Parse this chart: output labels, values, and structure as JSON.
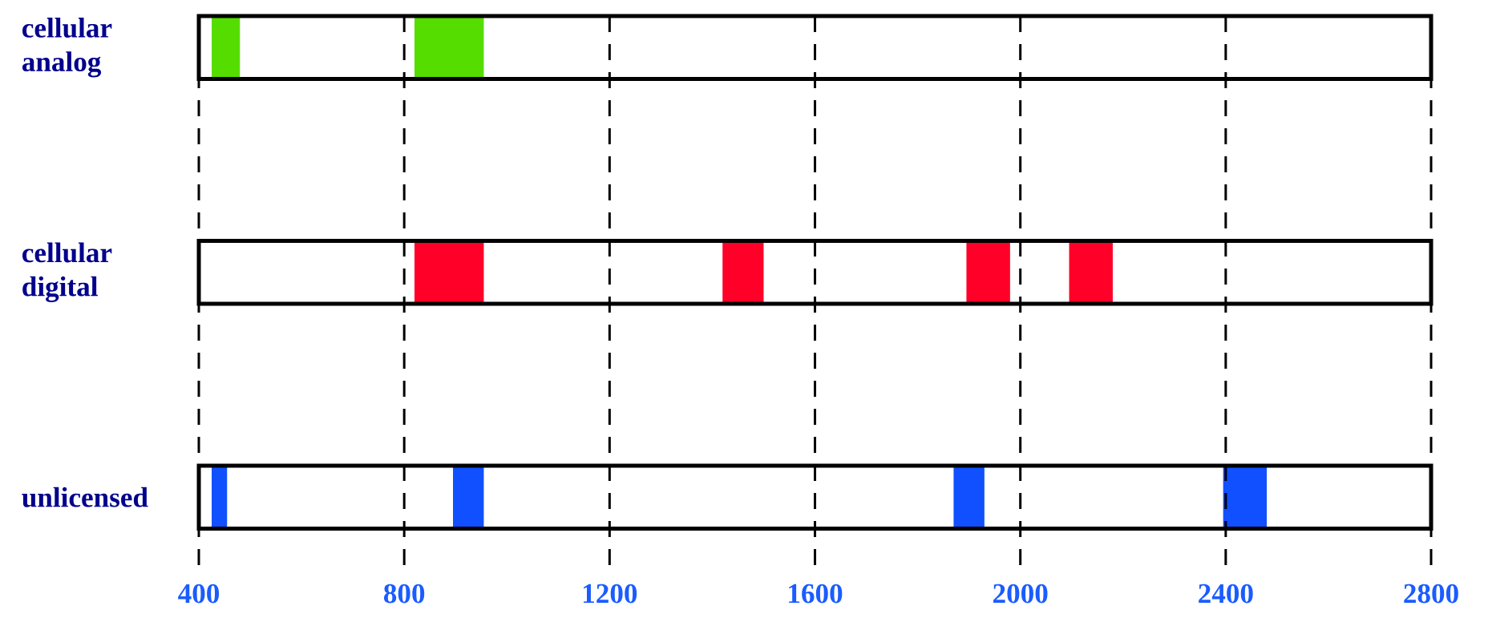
{
  "chart_data": {
    "type": "bar",
    "orientation": "horizontal",
    "categories": [
      "cellular analog",
      "cellular digital",
      "unlicensed"
    ],
    "series": [
      {
        "base": [
          425,
          820,
          425
        ],
        "values": [
          55,
          135,
          30
        ],
        "colors": [
          "#55dd00",
          "#ff0028",
          "#1050ff"
        ]
      },
      {
        "base": [
          820,
          1420,
          895
        ],
        "values": [
          135,
          80,
          60
        ],
        "colors": [
          "#55dd00",
          "#ff0028",
          "#1050ff"
        ]
      },
      {
        "base": [
          null,
          1895,
          1870
        ],
        "values": [
          null,
          85,
          60
        ],
        "colors": [
          "#55dd00",
          "#ff0028",
          "#1050ff"
        ]
      },
      {
        "base": [
          null,
          2095,
          2395
        ],
        "values": [
          null,
          85,
          85
        ],
        "colors": [
          "#55dd00",
          "#ff0028",
          "#1050ff"
        ]
      }
    ],
    "xlim": [
      400,
      2800
    ],
    "xticks": [
      400,
      800,
      1200,
      1600,
      2000,
      2400,
      2800
    ],
    "grid": "x"
  }
}
